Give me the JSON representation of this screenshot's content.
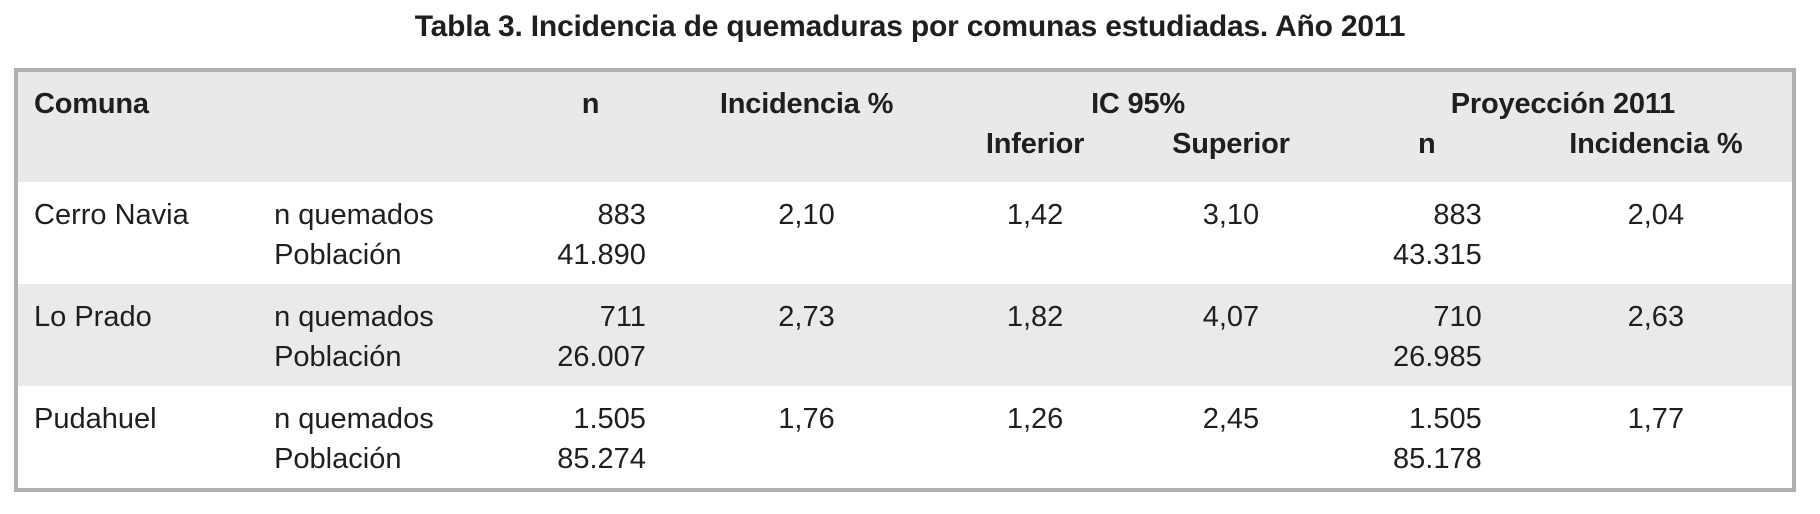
{
  "title": "Tabla 3. Incidencia de quemaduras por comunas estudiadas. Año 2011",
  "colors": {
    "header_bg": "#e9e9e9",
    "stripe_bg": "#eaeaea",
    "border": "#b0b0b0",
    "text": "#1f1f1f"
  },
  "table": {
    "header": {
      "comuna": "Comuna",
      "n": "n",
      "incidencia": "Incidencia %",
      "ic95": "IC 95%",
      "inferior": "Inferior",
      "superior": "Superior",
      "proyeccion": "Proyección 2011",
      "proy_n": "n",
      "proy_incidencia": "Incidencia %"
    },
    "labels": {
      "quemados": "n quemados",
      "poblacion": "Población"
    },
    "rows": [
      {
        "comuna": "Cerro Navia",
        "n_quemados": "883",
        "poblacion": "41.890",
        "incidencia": "2,10",
        "ic_inferior": "1,42",
        "ic_superior": "3,10",
        "proy_n": "883",
        "proy_poblacion": "43.315",
        "proy_incidencia": "2,04"
      },
      {
        "comuna": "Lo Prado",
        "n_quemados": "711",
        "poblacion": "26.007",
        "incidencia": "2,73",
        "ic_inferior": "1,82",
        "ic_superior": "4,07",
        "proy_n": "710",
        "proy_poblacion": "26.985",
        "proy_incidencia": "2,63"
      },
      {
        "comuna": "Pudahuel",
        "n_quemados": "1.505",
        "poblacion": "85.274",
        "incidencia": "1,76",
        "ic_inferior": "1,26",
        "ic_superior": "2,45",
        "proy_n": "1.505",
        "proy_poblacion": "85.178",
        "proy_incidencia": "1,77"
      }
    ]
  }
}
